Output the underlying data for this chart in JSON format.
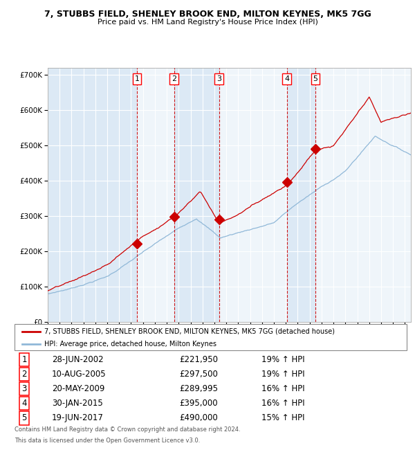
{
  "title": "7, STUBBS FIELD, SHENLEY BROOK END, MILTON KEYNES, MK5 7GG",
  "subtitle": "Price paid vs. HM Land Registry's House Price Index (HPI)",
  "plot_bg_color": "#dce9f5",
  "col_shade_color": "#ffffff",
  "legend_line1": "7, STUBBS FIELD, SHENLEY BROOK END, MILTON KEYNES, MK5 7GG (detached house)",
  "legend_line2": "HPI: Average price, detached house, Milton Keynes",
  "footer1": "Contains HM Land Registry data © Crown copyright and database right 2024.",
  "footer2": "This data is licensed under the Open Government Licence v3.0.",
  "xmin": 1995.0,
  "xmax": 2025.5,
  "ymin": 0,
  "ymax": 720000,
  "yticks": [
    0,
    100000,
    200000,
    300000,
    400000,
    500000,
    600000,
    700000
  ],
  "ytick_labels": [
    "£0",
    "£100K",
    "£200K",
    "£300K",
    "£400K",
    "£500K",
    "£600K",
    "£700K"
  ],
  "sale_dates": [
    2002.49,
    2005.61,
    2009.38,
    2015.08,
    2017.47
  ],
  "sale_prices": [
    221950,
    297500,
    289995,
    395000,
    490000
  ],
  "sale_labels": [
    "1",
    "2",
    "3",
    "4",
    "5"
  ],
  "sale_info": [
    [
      "1",
      "28-JUN-2002",
      "£221,950",
      "19% ↑ HPI"
    ],
    [
      "2",
      "10-AUG-2005",
      "£297,500",
      "19% ↑ HPI"
    ],
    [
      "3",
      "20-MAY-2009",
      "£289,995",
      "16% ↑ HPI"
    ],
    [
      "4",
      "30-JAN-2015",
      "£395,000",
      "16% ↑ HPI"
    ],
    [
      "5",
      "19-JUN-2017",
      "£490,000",
      "15% ↑ HPI"
    ]
  ],
  "red_line_color": "#cc0000",
  "blue_line_color": "#90b8d8",
  "marker_color": "#cc0000",
  "vline_color": "#cc0000",
  "grid_color": "#ffffff",
  "title_fontsize": 9,
  "subtitle_fontsize": 8
}
